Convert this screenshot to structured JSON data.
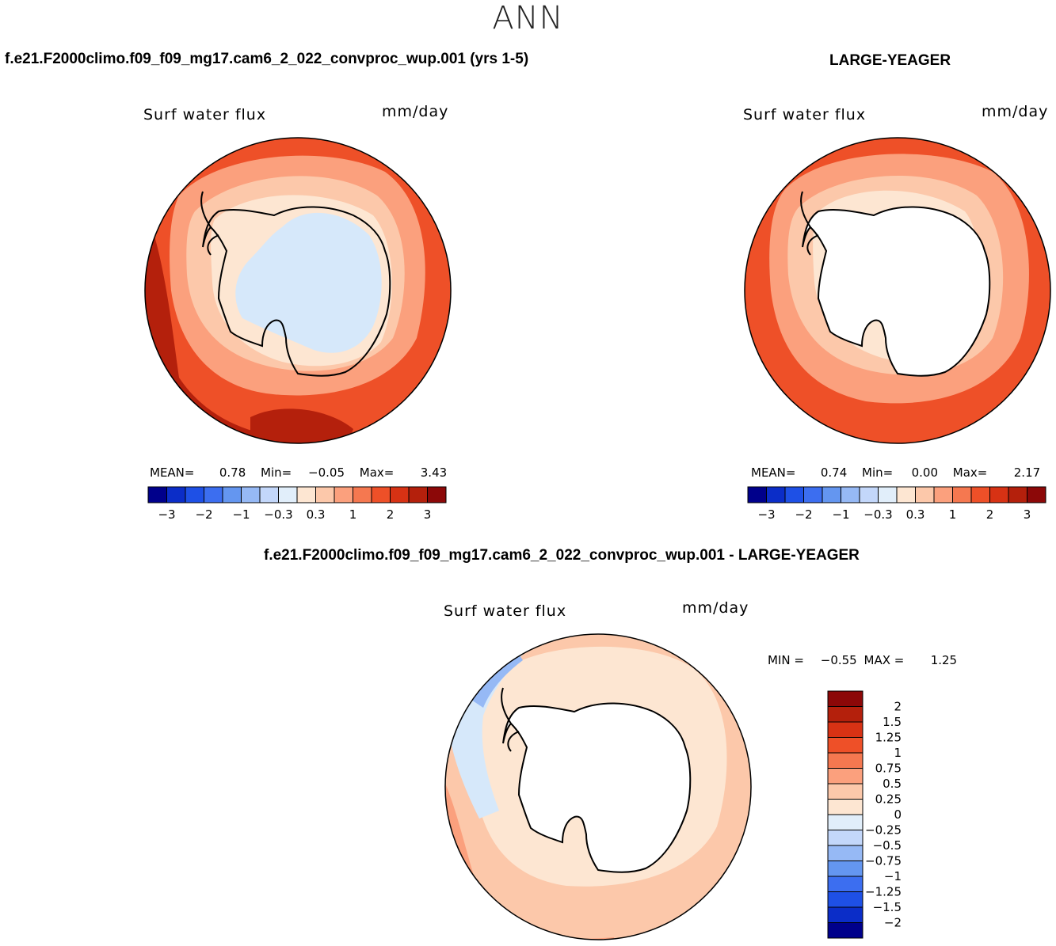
{
  "title": "ANN",
  "panels": [
    {
      "case": "f.e21.F2000climo.f09_f09_mg17.cam6_2_022_convproc_wup.001 (yrs 1-5)",
      "variable": "Surf water flux",
      "units": "mm/day",
      "stats": {
        "mean_label": "MEAN=",
        "mean": "0.78",
        "min_label": "Min=",
        "min": "−0.05",
        "max_label": "Max=",
        "max": "3.43"
      }
    },
    {
      "case": "LARGE-YEAGER",
      "variable": "Surf water flux",
      "units": "mm/day",
      "stats": {
        "mean_label": "MEAN=",
        "mean": "0.74",
        "min_label": "Min=",
        "min": "0.00",
        "max_label": "Max=",
        "max": "2.17"
      }
    },
    {
      "case": "f.e21.F2000climo.f09_f09_mg17.cam6_2_022_convproc_wup.001 - LARGE-YEAGER",
      "variable": "Surf water flux",
      "units": "mm/day",
      "stats": {
        "min_label": "MIN =",
        "min": "−0.55",
        "max_label": "MAX =",
        "max": "1.25"
      }
    }
  ],
  "colorbar_horizontal": {
    "colors": [
      "#00008b",
      "#0b2dc8",
      "#1e50e6",
      "#3c6ef0",
      "#6496f0",
      "#96b9f5",
      "#c3d7fa",
      "#e1eefa",
      "#fde6d2",
      "#fcc8aa",
      "#fba07d",
      "#f57850",
      "#ee5028",
      "#d73214",
      "#b4200c",
      "#8c0808"
    ],
    "tick_labels": [
      "−3",
      "−2",
      "−1",
      "−0.3",
      "0.3",
      "1",
      "2",
      "3"
    ]
  },
  "colorbar_vertical": {
    "colors_top_to_bottom": [
      "#8c0808",
      "#b4200c",
      "#d73214",
      "#ee5028",
      "#f57850",
      "#fba07d",
      "#fcc8aa",
      "#fde6d2",
      "#e1eefa",
      "#c3d7fa",
      "#96b9f5",
      "#6496f0",
      "#3c6ef0",
      "#1e50e6",
      "#0b2dc8",
      "#00008b"
    ],
    "tick_labels": [
      "2",
      "1.5",
      "1.25",
      "1",
      "0.75",
      "0.5",
      "0.25",
      "0",
      "−0.25",
      "−0.5",
      "−0.75",
      "−1",
      "−1.25",
      "−1.5",
      "−2"
    ]
  },
  "map_colors": {
    "ocean_dark": "#b4200c",
    "ocean_mid": "#ee5028",
    "ocean_light": "#f57850",
    "ocean_pale": "#fba07d",
    "ice_edge": "#fcc8aa",
    "cream": "#fde6d2",
    "land_blue": "#d6e8fa",
    "land_white": "#ffffff",
    "neg_blue": "#96b9f5"
  }
}
